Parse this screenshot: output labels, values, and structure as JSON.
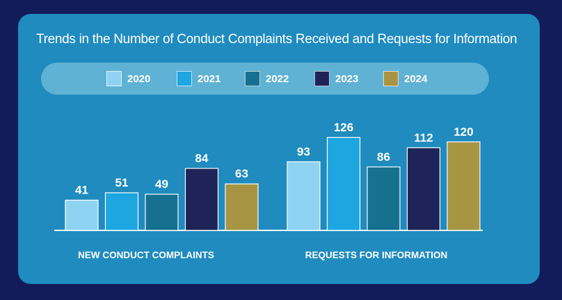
{
  "chart_data": {
    "type": "bar",
    "title": "Trends in the Number of Conduct Complaints Received and Requests for Information",
    "categories": [
      "NEW CONDUCT COMPLAINTS",
      "REQUESTS FOR INFORMATION"
    ],
    "series": [
      {
        "name": "2020",
        "color": "#8fd3f2",
        "values": [
          41,
          93
        ]
      },
      {
        "name": "2021",
        "color": "#1ea6e0",
        "values": [
          51,
          126
        ]
      },
      {
        "name": "2022",
        "color": "#16708f",
        "values": [
          49,
          86
        ]
      },
      {
        "name": "2023",
        "color": "#1e2457",
        "values": [
          84,
          112
        ]
      },
      {
        "name": "2024",
        "color": "#a89544",
        "values": [
          63,
          120
        ]
      }
    ],
    "xlabel": "",
    "ylabel": "",
    "ylim": [
      0,
      130
    ],
    "grid": false,
    "legend_position": "top"
  },
  "colors": {
    "background": "#121c5a",
    "panel": "#1f8bbf",
    "legend_band": "#5fb2d4",
    "text": "#ffffff"
  }
}
